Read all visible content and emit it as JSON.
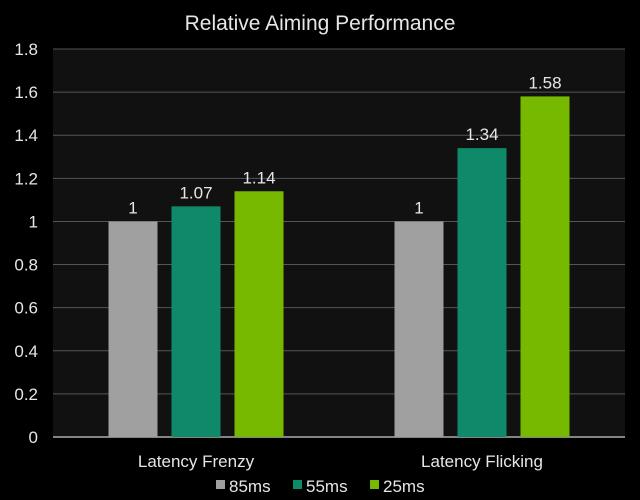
{
  "chart_data": {
    "type": "bar",
    "title": "Relative Aiming Performance",
    "categories": [
      "Latency Frenzy",
      "Latency Flicking"
    ],
    "series": [
      {
        "name": "85ms",
        "values": [
          1,
          1
        ],
        "labels": [
          "1",
          "1"
        ],
        "color": "#a0a0a0"
      },
      {
        "name": "55ms",
        "values": [
          1.07,
          1.34
        ],
        "labels": [
          "1.07",
          "1.34"
        ],
        "color": "#0e8a6a"
      },
      {
        "name": "25ms",
        "values": [
          1.14,
          1.58
        ],
        "labels": [
          "1.14",
          "1.58"
        ],
        "color": "#76b900"
      }
    ],
    "yticks": [
      "0",
      "0.2",
      "0.4",
      "0.6",
      "0.8",
      "1",
      "1.2",
      "1.4",
      "1.6",
      "1.8"
    ],
    "ylim": [
      0,
      1.8
    ],
    "grid": true,
    "legend": "bottom",
    "background": "#111111"
  }
}
